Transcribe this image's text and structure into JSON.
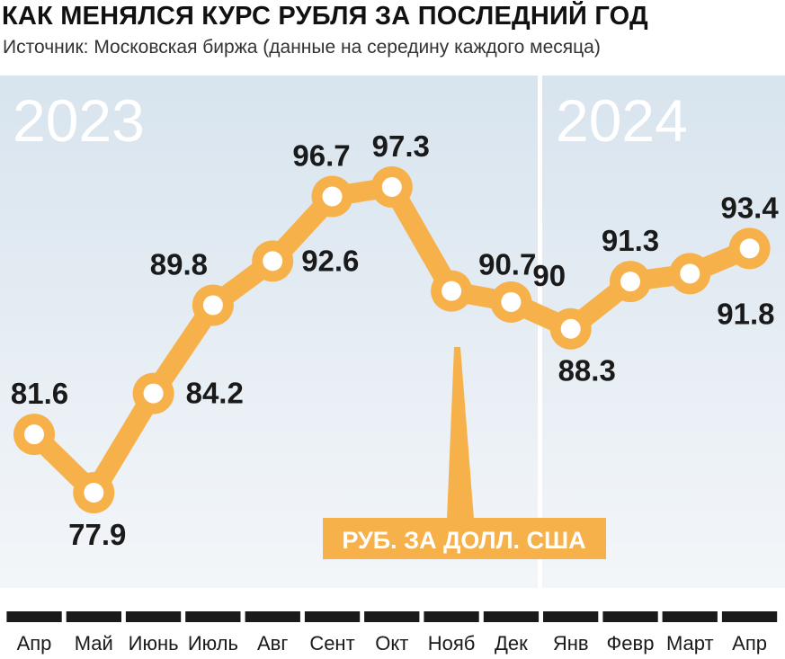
{
  "header": {
    "title": "КАК МЕНЯЛСЯ КУРС РУБЛЯ ЗА ПОСЛЕДНИЙ ГОД",
    "subtitle": "Источник: Московская биржа (данные на середину каждого месяца)"
  },
  "colors": {
    "line": "#f7b14a",
    "marker_fill": "#ffffff",
    "bg_top": "#d8e4ee",
    "bg_bottom": "#f3f6f9",
    "ticks": "#1a1a1a"
  },
  "chart_data": {
    "type": "line",
    "title": "КАК МЕНЯЛСЯ КУРС РУБЛЯ ЗА ПОСЛЕДНИЙ ГОД",
    "subtitle": "Источник: Московская биржа (данные на середину каждого месяца)",
    "categories": [
      "Апр",
      "Май",
      "Июнь",
      "Июль",
      "Авг",
      "Сент",
      "Окт",
      "Нояб",
      "Дек",
      "Янв",
      "Февр",
      "Март",
      "Апр"
    ],
    "year_labels": [
      "2023",
      "2024"
    ],
    "unit_label": "РУБ. ЗА ДОЛЛ. США",
    "series": [
      {
        "values": [
          81.6,
          77.9,
          84.2,
          89.8,
          92.6,
          96.7,
          97.3,
          90.7,
          90,
          88.3,
          91.3,
          91.8,
          93.4
        ]
      }
    ],
    "ylim": [
      76,
      98.5
    ],
    "grid": false,
    "legend": "none"
  }
}
